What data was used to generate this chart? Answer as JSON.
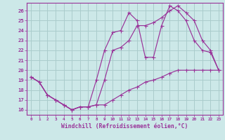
{
  "xlabel": "Windchill (Refroidissement éolien,°C)",
  "bg_color": "#cce8e8",
  "line_color": "#993399",
  "grid_color": "#aacccc",
  "xlim": [
    -0.5,
    23.5
  ],
  "ylim": [
    15.5,
    26.8
  ],
  "yticks": [
    16,
    17,
    18,
    19,
    20,
    21,
    22,
    23,
    24,
    25,
    26
  ],
  "xticks": [
    0,
    1,
    2,
    3,
    4,
    5,
    6,
    7,
    8,
    9,
    10,
    11,
    12,
    13,
    14,
    15,
    16,
    17,
    18,
    19,
    20,
    21,
    22,
    23
  ],
  "series1_x": [
    0,
    1,
    2,
    3,
    4,
    5,
    6,
    7,
    8,
    9,
    10,
    11,
    12,
    13,
    14,
    15,
    16,
    17,
    18,
    19,
    20,
    21,
    22,
    23
  ],
  "series1_y": [
    19.3,
    18.8,
    17.5,
    17.0,
    16.5,
    16.0,
    16.3,
    16.3,
    16.5,
    16.5,
    17.0,
    17.5,
    18.0,
    18.3,
    18.8,
    19.0,
    19.3,
    19.7,
    20.0,
    20.0,
    20.0,
    20.0,
    20.0,
    20.0
  ],
  "series2_x": [
    0,
    1,
    2,
    3,
    4,
    5,
    6,
    7,
    8,
    9,
    10,
    11,
    12,
    13,
    14,
    15,
    16,
    17,
    18,
    19,
    20,
    21,
    22,
    23
  ],
  "series2_y": [
    19.3,
    18.8,
    17.5,
    17.0,
    16.5,
    16.0,
    16.3,
    16.3,
    19.0,
    22.0,
    23.8,
    24.0,
    25.8,
    25.0,
    21.3,
    21.3,
    24.5,
    26.5,
    26.0,
    25.0,
    23.0,
    22.0,
    21.8,
    20.0
  ],
  "series3_x": [
    0,
    1,
    2,
    3,
    4,
    5,
    6,
    7,
    8,
    9,
    10,
    11,
    12,
    13,
    14,
    15,
    16,
    17,
    18,
    19,
    20,
    21,
    22,
    23
  ],
  "series3_y": [
    19.3,
    18.8,
    17.5,
    17.0,
    16.5,
    16.0,
    16.3,
    16.3,
    16.5,
    19.0,
    22.0,
    22.3,
    23.0,
    24.5,
    24.5,
    24.8,
    25.3,
    26.0,
    26.5,
    25.8,
    25.0,
    23.0,
    22.0,
    20.0
  ]
}
